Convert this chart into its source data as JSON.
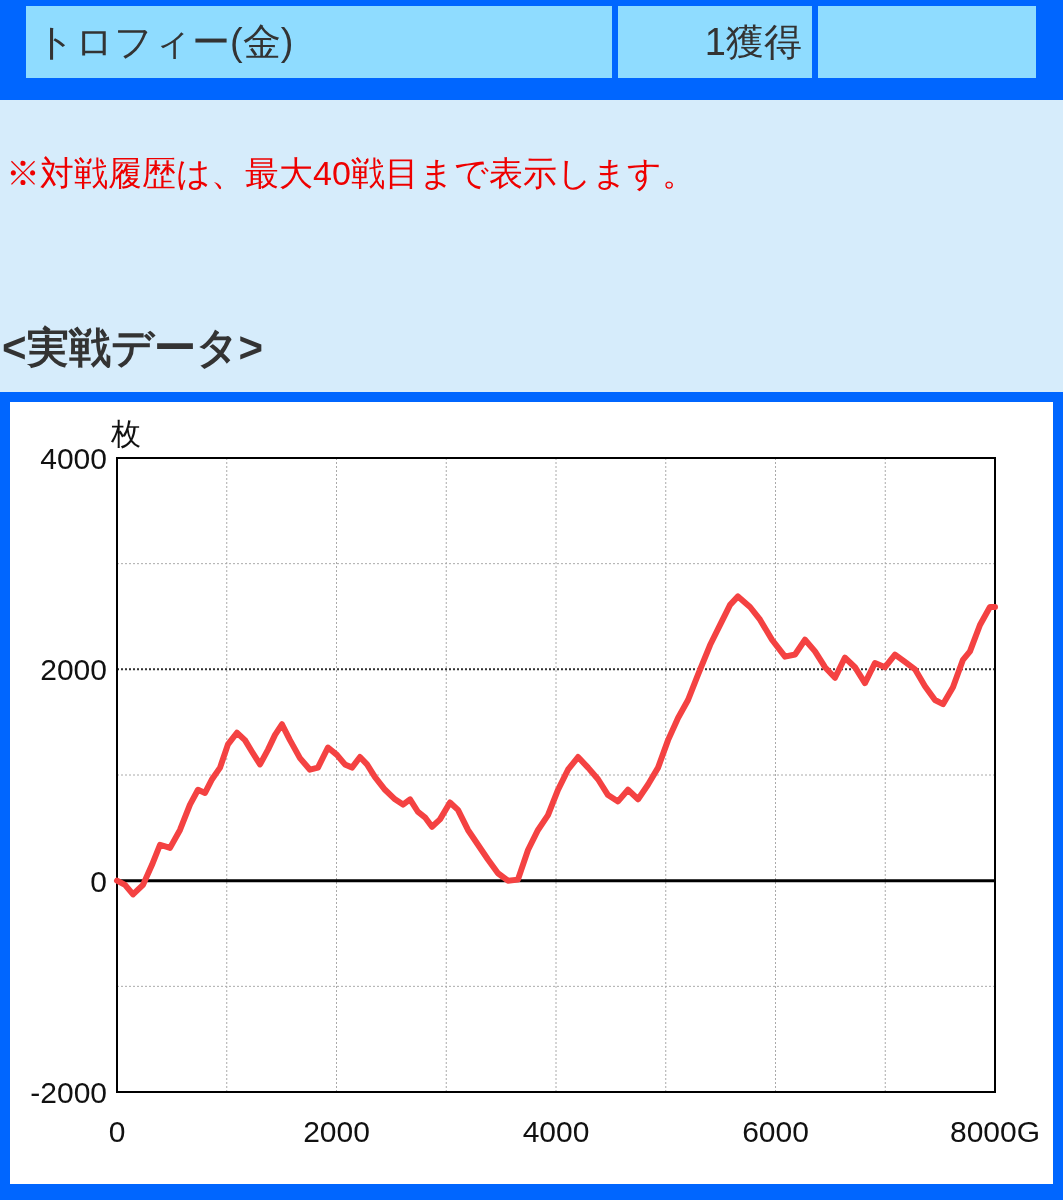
{
  "chart_data": {
    "type": "line",
    "title": "<実戦データ>",
    "ylabel": "枚",
    "annotations": [
      "トロフィー(金)",
      "1獲得",
      "※対戦履歴は、最大40戦目まで表示します。"
    ],
    "x": [
      0,
      73,
      146,
      237,
      319,
      392,
      483,
      574,
      665,
      738,
      802,
      866,
      939,
      1011,
      1093,
      1166,
      1230,
      1303,
      1376,
      1440,
      1503,
      1576,
      1667,
      1758,
      1831,
      1922,
      2004,
      2077,
      2141,
      2214,
      2278,
      2351,
      2442,
      2533,
      2606,
      2670,
      2743,
      2806,
      2870,
      2943,
      3034,
      3107,
      3198,
      3289,
      3380,
      3471,
      3562,
      3653,
      3745,
      3836,
      3927,
      4018,
      4109,
      4201,
      4292,
      4383,
      4474,
      4565,
      4656,
      4748,
      4839,
      4930,
      5021,
      5112,
      5203,
      5294,
      5404,
      5495,
      5586,
      5658,
      5768,
      5859,
      5968,
      6087,
      6178,
      6269,
      6360,
      6451,
      6542,
      6633,
      6724,
      6815,
      6906,
      6998,
      7089,
      7180,
      7271,
      7362,
      7453,
      7526,
      7617,
      7708,
      7772,
      7863,
      7954,
      8000
    ],
    "series": [
      {
        "color": "#f44242",
        "values": [
          0,
          -40,
          -130,
          -40,
          150,
          340,
          310,
          480,
          720,
          860,
          830,
          960,
          1070,
          1290,
          1400,
          1330,
          1220,
          1100,
          1240,
          1380,
          1480,
          1330,
          1160,
          1050,
          1070,
          1260,
          1190,
          1100,
          1070,
          1170,
          1100,
          980,
          860,
          770,
          720,
          770,
          650,
          600,
          510,
          580,
          740,
          670,
          480,
          340,
          200,
          70,
          0,
          10,
          290,
          480,
          620,
          860,
          1050,
          1170,
          1070,
          960,
          810,
          750,
          860,
          770,
          910,
          1070,
          1330,
          1540,
          1710,
          1950,
          2230,
          2420,
          2610,
          2690,
          2590,
          2470,
          2280,
          2120,
          2140,
          2280,
          2170,
          2020,
          1920,
          2110,
          2020,
          1870,
          2060,
          2020,
          2140,
          2070,
          2000,
          1840,
          1710,
          1670,
          1830,
          2090,
          2170,
          2420,
          2590,
          2590
        ]
      }
    ],
    "xlim": [
      0,
      8000
    ],
    "ylim": [
      -2000,
      4000
    ],
    "xticks": [
      0,
      {
        "value": 1000,
        "label": null
      },
      2000,
      {
        "value": 3000,
        "label": null
      },
      4000,
      {
        "value": 5000,
        "label": null
      },
      6000,
      {
        "value": 7000,
        "label": null
      },
      {
        "value": 8000,
        "label": "8000G"
      }
    ],
    "yticks": [
      -2000,
      {
        "value": -1000,
        "label": null
      },
      0,
      {
        "value": 1000,
        "label": null
      },
      2000,
      {
        "value": 3000,
        "label": null
      },
      4000
    ],
    "grid": true,
    "ref_lines": [
      {
        "axis": "y",
        "value": 0,
        "color": "#000000"
      },
      {
        "axis": "y",
        "value": 2000,
        "color": "#333333",
        "line_style": "dotted"
      }
    ]
  }
}
